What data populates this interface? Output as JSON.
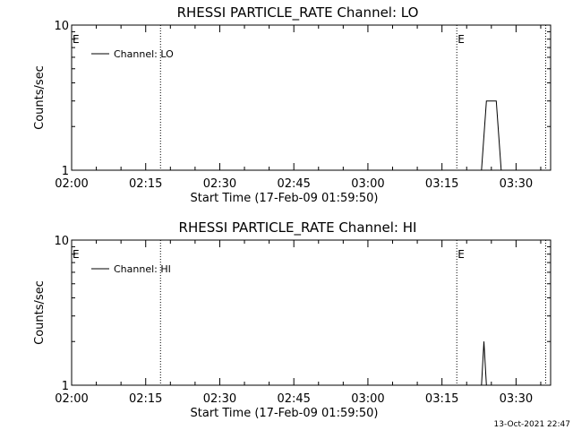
{
  "colors": {
    "background": "#ffffff",
    "foreground": "#000000"
  },
  "footer": {
    "timestamp": "13-Oct-2021 22:47"
  },
  "chart_data": [
    {
      "type": "line",
      "title": "RHESSI PARTICLE_RATE Channel: LO",
      "xlabel": "Start Time (17-Feb-09 01:59:50)",
      "ylabel": "Counts/sec",
      "y_scale": "log",
      "ylim": [
        1,
        10
      ],
      "y_ticks": [
        {
          "value": 1,
          "label": "1"
        },
        {
          "value": 10,
          "label": "10"
        }
      ],
      "xlim": [
        "02:00",
        "03:37"
      ],
      "x_ticks": [
        "02:00",
        "02:15",
        "02:30",
        "02:45",
        "03:00",
        "03:15",
        "03:30"
      ],
      "legend": {
        "entries": [
          "Channel: LO"
        ],
        "position": "top-left"
      },
      "event_lines": [
        {
          "time": "02:18",
          "label": ""
        },
        {
          "time": "03:18",
          "label": "E"
        },
        {
          "time": "03:36",
          "label": ""
        }
      ],
      "axis_marker": "E",
      "series": [
        {
          "name": "Channel: LO",
          "x": [
            "02:00",
            "03:22",
            "03:23",
            "03:24",
            "03:25",
            "03:26",
            "03:27",
            "03:37"
          ],
          "y": [
            1,
            1,
            1,
            3,
            3,
            3,
            1,
            1
          ]
        }
      ]
    },
    {
      "type": "line",
      "title": "RHESSI PARTICLE_RATE Channel: HI",
      "xlabel": "Start Time (17-Feb-09 01:59:50)",
      "ylabel": "Counts/sec",
      "y_scale": "log",
      "ylim": [
        1,
        10
      ],
      "y_ticks": [
        {
          "value": 1,
          "label": "1"
        },
        {
          "value": 10,
          "label": "10"
        }
      ],
      "xlim": [
        "02:00",
        "03:37"
      ],
      "x_ticks": [
        "02:00",
        "02:15",
        "02:30",
        "02:45",
        "03:00",
        "03:15",
        "03:30"
      ],
      "legend": {
        "entries": [
          "Channel: HI"
        ],
        "position": "top-left"
      },
      "event_lines": [
        {
          "time": "02:18",
          "label": ""
        },
        {
          "time": "03:18",
          "label": "E"
        },
        {
          "time": "03:36",
          "label": ""
        }
      ],
      "axis_marker": "E",
      "series": [
        {
          "name": "Channel: HI",
          "x": [
            "02:00",
            "03:23",
            "03:23.5",
            "03:24",
            "03:37"
          ],
          "y": [
            1,
            1,
            2,
            1,
            1
          ]
        }
      ]
    }
  ]
}
